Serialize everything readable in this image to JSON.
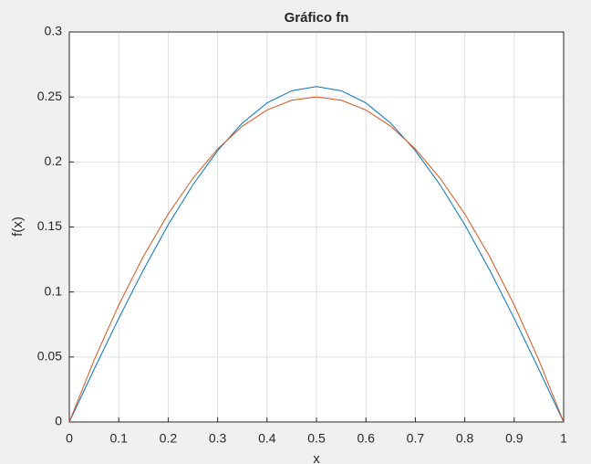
{
  "chart_data": {
    "type": "line",
    "title": "Gráfico fn",
    "x_label": "x",
    "y_label": "f(x)",
    "x": [
      0,
      0.05,
      0.1,
      0.15,
      0.2,
      0.25,
      0.3,
      0.35,
      0.4,
      0.45,
      0.5,
      0.55,
      0.6,
      0.65,
      0.7,
      0.75,
      0.8,
      0.85,
      0.9,
      0.95,
      1
    ],
    "series": [
      {
        "color": "#0072BD",
        "values": [
          0,
          0.0404,
          0.0797,
          0.1171,
          0.1517,
          0.1824,
          0.2087,
          0.2299,
          0.2454,
          0.2548,
          0.258,
          0.2548,
          0.2454,
          0.2299,
          0.2087,
          0.1824,
          0.1517,
          0.1171,
          0.0797,
          0.0404,
          0
        ]
      },
      {
        "color": "#D95319",
        "values": [
          0,
          0.0475,
          0.09,
          0.1275,
          0.16,
          0.1875,
          0.21,
          0.2275,
          0.24,
          0.2475,
          0.25,
          0.2475,
          0.24,
          0.2275,
          0.21,
          0.1875,
          0.16,
          0.1275,
          0.09,
          0.0475,
          0
        ]
      }
    ],
    "xlim": [
      0,
      1
    ],
    "xticks": [
      0,
      0.1,
      0.2,
      0.3,
      0.4,
      0.5,
      0.6,
      0.7,
      0.8,
      0.9,
      1
    ],
    "ylim": [
      0,
      0.3
    ],
    "yticks": [
      0,
      0.05,
      0.1,
      0.15,
      0.2,
      0.25,
      0.3
    ],
    "grid": true
  }
}
